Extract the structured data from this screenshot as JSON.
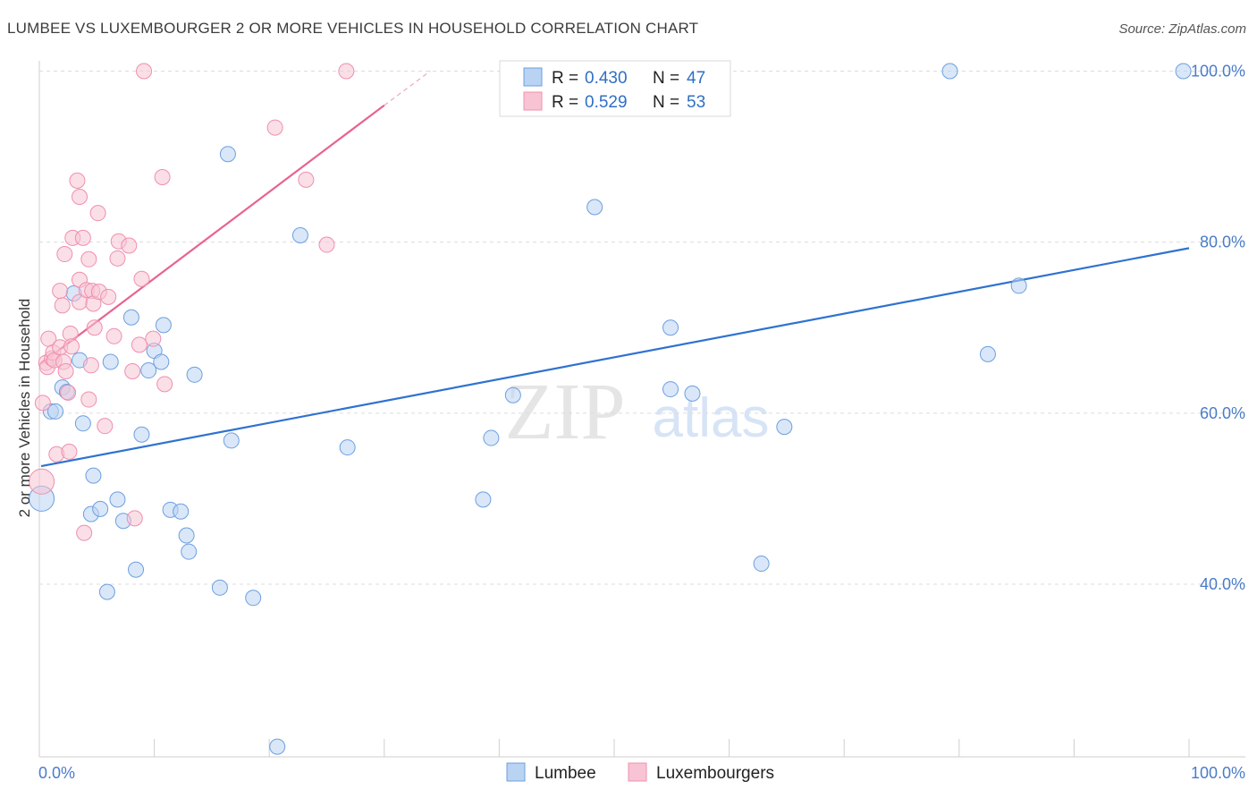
{
  "title": "LUMBEE VS LUXEMBOURGER 2 OR MORE VEHICLES IN HOUSEHOLD CORRELATION CHART",
  "source": "Source: ZipAtlas.com",
  "colors": {
    "lumbee_fill": "#b9d3f3",
    "lumbee_stroke": "#6d9fe0",
    "lumbee_line": "#2f72d0",
    "lux_fill": "#f8c4d4",
    "lux_stroke": "#ef8fae",
    "lux_line": "#e8638f",
    "grid": "#dcdcdc",
    "tick_text": "#4a7cc9"
  },
  "chart_data": {
    "type": "scatter",
    "title": "LUMBEE VS LUXEMBOURGER 2 OR MORE VEHICLES IN HOUSEHOLD CORRELATION CHART",
    "xlabel": "",
    "ylabel": "2 or more Vehicles in Household",
    "xlim": [
      0,
      100
    ],
    "ylim": [
      20,
      102
    ],
    "x_tick_labels": [
      {
        "value": 0,
        "label": "0.0%"
      },
      {
        "value": 100,
        "label": "100.0%"
      }
    ],
    "y_tick_labels": [
      {
        "value": 40,
        "label": "40.0%"
      },
      {
        "value": 60,
        "label": "60.0%"
      },
      {
        "value": 80,
        "label": "80.0%"
      },
      {
        "value": 100,
        "label": "100.0%"
      }
    ],
    "legend": [
      {
        "series": "Lumbee",
        "r_label": "R = ",
        "r_value": "0.430",
        "n_label": "N = ",
        "n_value": "47"
      },
      {
        "series": "Luxembourgers",
        "r_label": "R = ",
        "r_value": "0.529",
        "n_label": "N = ",
        "n_value": "53"
      }
    ],
    "series": [
      {
        "name": "Lumbee",
        "trend": {
          "x0": 0,
          "y0": 53.8,
          "x1": 100,
          "y1": 79.3
        },
        "points": [
          {
            "x": 0.2,
            "y": 50.0,
            "big": true
          },
          {
            "x": 1.0,
            "y": 60.2
          },
          {
            "x": 1.4,
            "y": 60.2
          },
          {
            "x": 2.0,
            "y": 63.0
          },
          {
            "x": 2.4,
            "y": 62.5
          },
          {
            "x": 3.0,
            "y": 74.0
          },
          {
            "x": 3.5,
            "y": 66.2
          },
          {
            "x": 3.8,
            "y": 58.8
          },
          {
            "x": 4.5,
            "y": 48.2
          },
          {
            "x": 4.7,
            "y": 52.7
          },
          {
            "x": 5.3,
            "y": 48.8
          },
          {
            "x": 5.9,
            "y": 39.1
          },
          {
            "x": 6.2,
            "y": 66.0
          },
          {
            "x": 6.8,
            "y": 49.9
          },
          {
            "x": 7.3,
            "y": 47.4
          },
          {
            "x": 8.0,
            "y": 71.2
          },
          {
            "x": 8.4,
            "y": 41.7
          },
          {
            "x": 8.9,
            "y": 57.5
          },
          {
            "x": 9.5,
            "y": 65.0
          },
          {
            "x": 10.0,
            "y": 67.3
          },
          {
            "x": 10.6,
            "y": 66.0
          },
          {
            "x": 10.8,
            "y": 70.3
          },
          {
            "x": 11.4,
            "y": 48.7
          },
          {
            "x": 12.3,
            "y": 48.5
          },
          {
            "x": 12.8,
            "y": 45.7
          },
          {
            "x": 13.0,
            "y": 43.8
          },
          {
            "x": 13.5,
            "y": 64.5
          },
          {
            "x": 15.7,
            "y": 39.6
          },
          {
            "x": 16.4,
            "y": 90.3
          },
          {
            "x": 16.7,
            "y": 56.8
          },
          {
            "x": 18.6,
            "y": 38.4
          },
          {
            "x": 20.7,
            "y": 21.0
          },
          {
            "x": 22.7,
            "y": 80.8
          },
          {
            "x": 26.8,
            "y": 56.0
          },
          {
            "x": 38.6,
            "y": 49.9
          },
          {
            "x": 39.3,
            "y": 57.1
          },
          {
            "x": 41.2,
            "y": 62.1
          },
          {
            "x": 48.3,
            "y": 84.1
          },
          {
            "x": 54.9,
            "y": 62.8
          },
          {
            "x": 54.9,
            "y": 70.0
          },
          {
            "x": 56.8,
            "y": 62.3
          },
          {
            "x": 62.8,
            "y": 42.4
          },
          {
            "x": 64.8,
            "y": 58.4
          },
          {
            "x": 79.2,
            "y": 100.0
          },
          {
            "x": 82.5,
            "y": 66.9
          },
          {
            "x": 85.2,
            "y": 74.9
          },
          {
            "x": 99.5,
            "y": 100.0
          }
        ]
      },
      {
        "name": "Luxembourgers",
        "trend": {
          "x0": 0,
          "y0": 65.8,
          "x1": 30,
          "y1": 96.0
        },
        "trend_dash": {
          "x0": 30,
          "y0": 96.0,
          "x1": 34,
          "y1": 100.0
        },
        "points": [
          {
            "x": 0.2,
            "y": 52.0,
            "big": true
          },
          {
            "x": 0.3,
            "y": 61.2
          },
          {
            "x": 0.6,
            "y": 65.9
          },
          {
            "x": 0.7,
            "y": 65.4
          },
          {
            "x": 0.8,
            "y": 68.7
          },
          {
            "x": 1.1,
            "y": 66.4
          },
          {
            "x": 1.2,
            "y": 67.1
          },
          {
            "x": 1.3,
            "y": 66.2
          },
          {
            "x": 1.5,
            "y": 55.2
          },
          {
            "x": 1.8,
            "y": 67.7
          },
          {
            "x": 1.8,
            "y": 74.3
          },
          {
            "x": 2.0,
            "y": 72.6
          },
          {
            "x": 2.1,
            "y": 66.0
          },
          {
            "x": 2.2,
            "y": 78.6
          },
          {
            "x": 2.3,
            "y": 64.9
          },
          {
            "x": 2.5,
            "y": 62.4
          },
          {
            "x": 2.6,
            "y": 55.5
          },
          {
            "x": 2.7,
            "y": 69.3
          },
          {
            "x": 2.8,
            "y": 67.8
          },
          {
            "x": 2.9,
            "y": 80.5
          },
          {
            "x": 3.3,
            "y": 87.2
          },
          {
            "x": 3.5,
            "y": 75.6
          },
          {
            "x": 3.5,
            "y": 73.0
          },
          {
            "x": 3.5,
            "y": 85.3
          },
          {
            "x": 3.8,
            "y": 80.5
          },
          {
            "x": 3.9,
            "y": 46.0
          },
          {
            "x": 4.1,
            "y": 74.4
          },
          {
            "x": 4.3,
            "y": 78.0
          },
          {
            "x": 4.3,
            "y": 61.6
          },
          {
            "x": 4.5,
            "y": 65.6
          },
          {
            "x": 4.6,
            "y": 74.3
          },
          {
            "x": 4.7,
            "y": 72.8
          },
          {
            "x": 4.8,
            "y": 70.0
          },
          {
            "x": 5.1,
            "y": 83.4
          },
          {
            "x": 5.2,
            "y": 74.2
          },
          {
            "x": 5.7,
            "y": 58.5
          },
          {
            "x": 6.0,
            "y": 73.6
          },
          {
            "x": 6.5,
            "y": 69.0
          },
          {
            "x": 6.8,
            "y": 78.1
          },
          {
            "x": 6.9,
            "y": 80.1
          },
          {
            "x": 7.8,
            "y": 79.6
          },
          {
            "x": 8.1,
            "y": 64.9
          },
          {
            "x": 8.3,
            "y": 47.7
          },
          {
            "x": 8.7,
            "y": 68.0
          },
          {
            "x": 8.9,
            "y": 75.7
          },
          {
            "x": 9.1,
            "y": 100.0
          },
          {
            "x": 9.9,
            "y": 68.7
          },
          {
            "x": 10.7,
            "y": 87.6
          },
          {
            "x": 10.9,
            "y": 63.4
          },
          {
            "x": 20.5,
            "y": 93.4
          },
          {
            "x": 23.2,
            "y": 87.3
          },
          {
            "x": 25.0,
            "y": 79.7
          },
          {
            "x": 26.7,
            "y": 100.0
          }
        ]
      }
    ]
  },
  "bottom_legend": {
    "lumbee": "Lumbee",
    "luxembourgers": "Luxembourgers"
  },
  "watermark": {
    "zip": "ZIP",
    "atlas": "atlas"
  }
}
